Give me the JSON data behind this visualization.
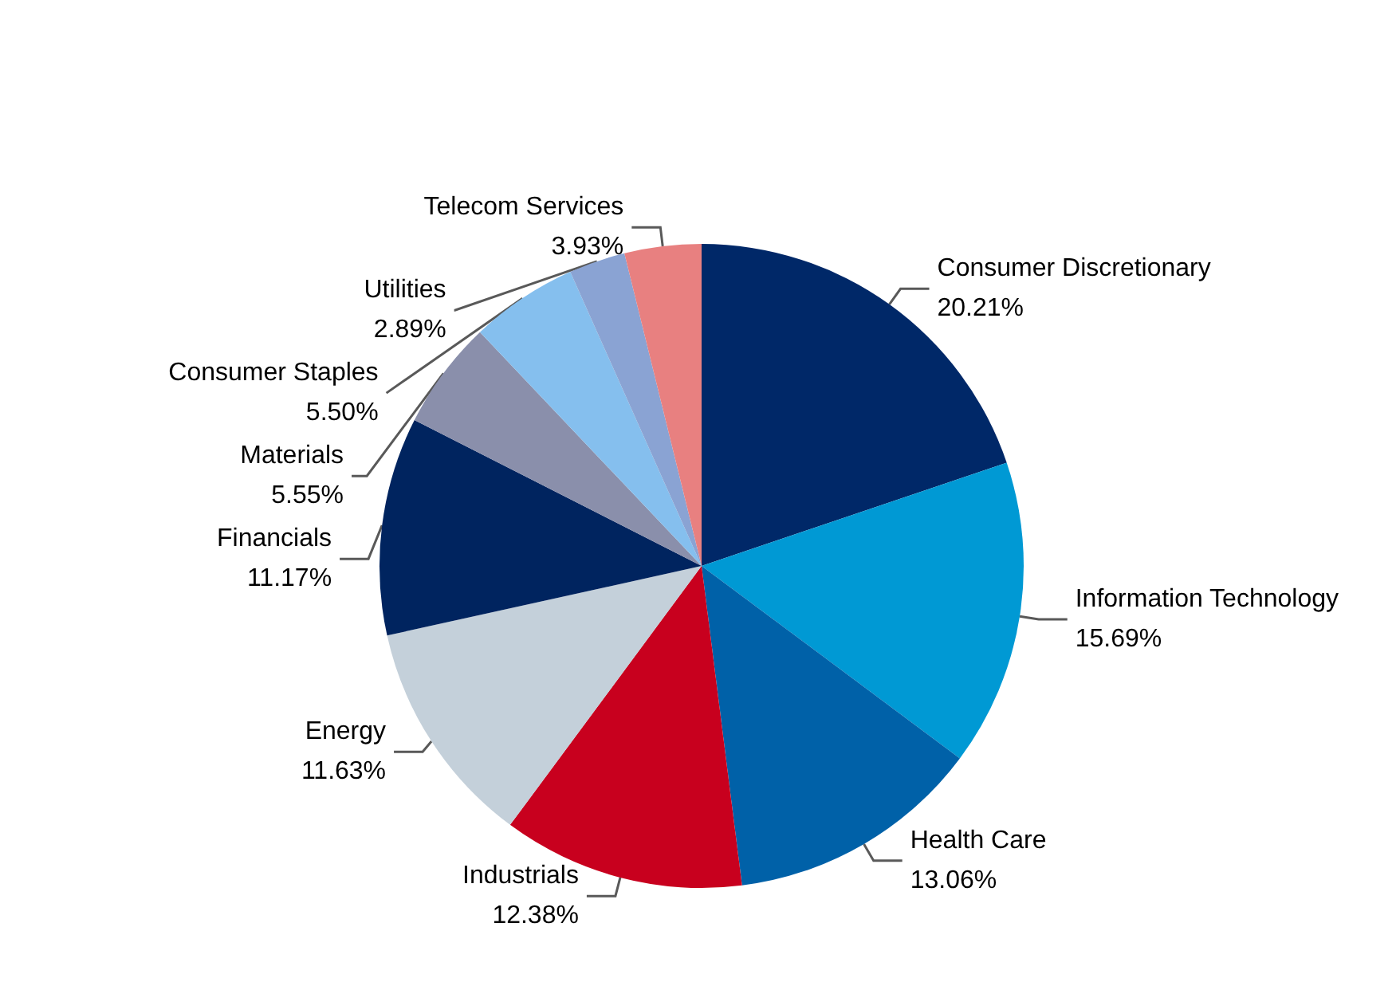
{
  "chart_data": {
    "type": "pie",
    "categories": [
      "Consumer Discretionary",
      "Information Technology",
      "Health Care",
      "Industrials",
      "Energy",
      "Financials",
      "Materials",
      "Consumer Staples",
      "Utilities",
      "Telecom Services"
    ],
    "values": [
      20.21,
      15.69,
      13.06,
      12.38,
      11.63,
      11.17,
      5.55,
      5.5,
      2.89,
      3.93
    ],
    "value_labels": [
      "20.21%",
      "15.69%",
      "13.06%",
      "12.38%",
      "11.63%",
      "11.17%",
      "5.55%",
      "5.50%",
      "2.89%",
      "3.93%"
    ],
    "colors": [
      "#002868",
      "#0099d4",
      "#0061a8",
      "#c8001e",
      "#c4d0da",
      "#00245f",
      "#8a8fab",
      "#85bfee",
      "#8aa3d3",
      "#e88080"
    ],
    "legend": false
  }
}
